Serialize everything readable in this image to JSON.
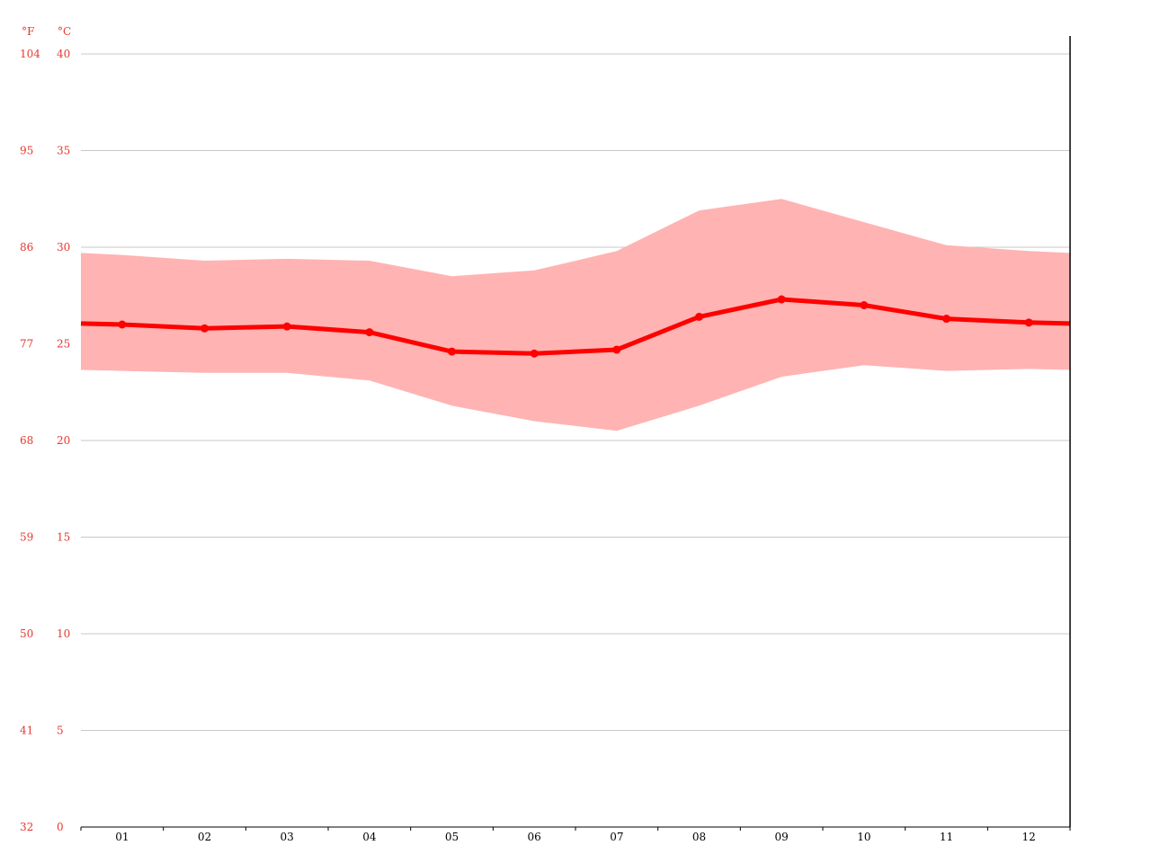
{
  "chart_data": {
    "type": "line",
    "categories": [
      "01",
      "02",
      "03",
      "04",
      "05",
      "06",
      "07",
      "08",
      "09",
      "10",
      "11",
      "12"
    ],
    "ylim": [
      0,
      40
    ],
    "yticks_c": [
      "0",
      "5",
      "10",
      "15",
      "20",
      "25",
      "30",
      "35",
      "40"
    ],
    "yticks_f": [
      "32",
      "41",
      "50",
      "59",
      "68",
      "77",
      "86",
      "95",
      "104"
    ],
    "unit_f": "°F",
    "unit_c": "°C",
    "series": [
      {
        "role": "mean",
        "values": [
          26.0,
          25.8,
          25.9,
          25.6,
          24.6,
          24.5,
          24.7,
          26.4,
          27.3,
          27.0,
          26.3,
          26.1
        ]
      },
      {
        "role": "max",
        "values": [
          29.6,
          29.3,
          29.4,
          29.3,
          28.5,
          28.8,
          29.8,
          31.9,
          32.5,
          31.3,
          30.1,
          29.8
        ]
      },
      {
        "role": "min",
        "values": [
          23.6,
          23.5,
          23.5,
          23.1,
          21.8,
          21.0,
          20.5,
          21.8,
          23.3,
          23.9,
          23.6,
          23.7
        ]
      }
    ],
    "grid": true,
    "colors": {
      "line": "#ff0000",
      "band": "#ffb3b3",
      "axis_label": "#e8382f",
      "grid": "#c8c8c8",
      "axis": "#000000"
    }
  }
}
